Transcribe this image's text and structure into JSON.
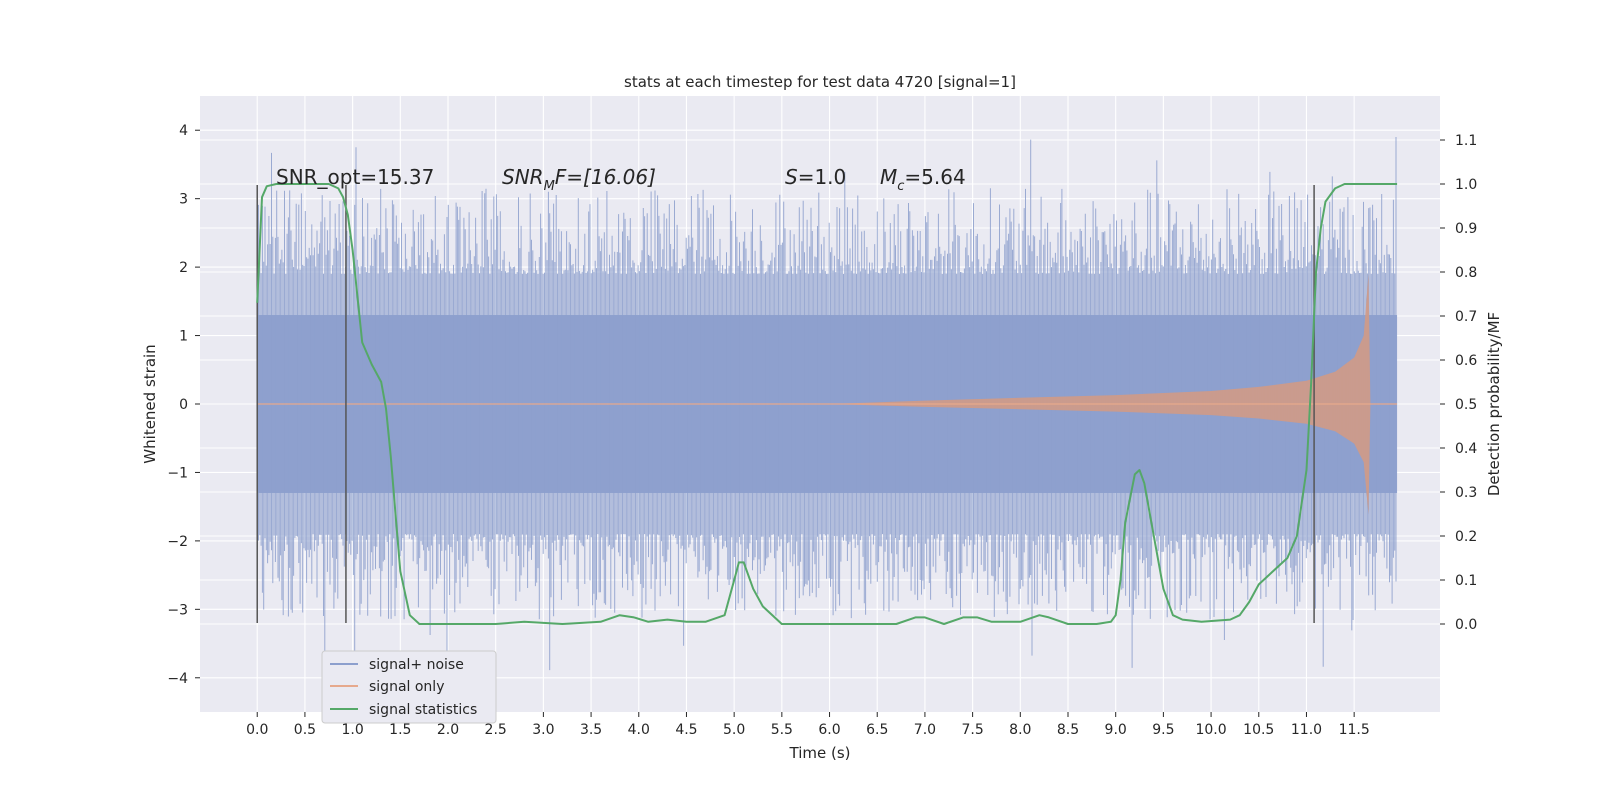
{
  "chart_data": {
    "type": "line",
    "title": "stats at each timestep for test data 4720 [signal=1]",
    "xlabel": "Time (s)",
    "ylabel_left": "Whitened strain",
    "ylabel_right": "Detection probability/MF",
    "xlim": [
      -0.6,
      12.4
    ],
    "ylim_left": [
      -4.5,
      4.5
    ],
    "ylim_right": [
      -0.2,
      1.2
    ],
    "x_ticks": [
      "0.0",
      "0.5",
      "1.0",
      "1.5",
      "2.0",
      "2.5",
      "3.0",
      "3.5",
      "4.0",
      "4.5",
      "5.0",
      "5.5",
      "6.0",
      "6.5",
      "7.0",
      "7.5",
      "8.0",
      "8.5",
      "9.0",
      "9.5",
      "10.0",
      "10.5",
      "11.0",
      "11.5"
    ],
    "y_left_ticks": [
      "4",
      "3",
      "2",
      "1",
      "0",
      "−1",
      "−2",
      "−3",
      "−4"
    ],
    "y_right_ticks": [
      "1.1",
      "1.0",
      "0.9",
      "0.8",
      "0.7",
      "0.6",
      "0.5",
      "0.4",
      "0.3",
      "0.2",
      "0.1",
      "0.0"
    ],
    "grid": true,
    "legend_position": "bottom-left",
    "annotations": {
      "snr_opt": "SNR_opt=15.37",
      "snr_mf_name": "SNR",
      "snr_mf_sub": "M",
      "snr_mf_rest": "F=[16.06]",
      "s_name": "S",
      "s_rest": "=1.0",
      "mc_name": "M",
      "mc_sub": "c",
      "mc_rest": "=5.64"
    },
    "vertical_markers_x": [
      0.0,
      0.93,
      11.08
    ],
    "series": [
      {
        "name": "signal+ noise",
        "axis": "left",
        "color": "#8c9fcd",
        "x_range": [
          0.0,
          11.95
        ],
        "band_upper": 1.3,
        "band_lower": -1.3,
        "spike_max": 4.1,
        "spike_min": -4.0
      },
      {
        "name": "signal only",
        "axis": "left",
        "color": "#dd8452",
        "envelope": [
          [
            6.0,
            0.0
          ],
          [
            7.0,
            0.05
          ],
          [
            8.0,
            0.09
          ],
          [
            9.0,
            0.13
          ],
          [
            10.0,
            0.19
          ],
          [
            10.5,
            0.25
          ],
          [
            11.0,
            0.34
          ],
          [
            11.3,
            0.47
          ],
          [
            11.5,
            0.68
          ],
          [
            11.6,
            1.0
          ],
          [
            11.65,
            1.9
          ],
          [
            11.67,
            0.0
          ]
        ]
      },
      {
        "name": "signal statistics",
        "axis": "right",
        "color": "#55a868",
        "x": [
          0.0,
          0.05,
          0.1,
          0.2,
          0.4,
          0.6,
          0.75,
          0.85,
          0.9,
          0.95,
          1.0,
          1.1,
          1.2,
          1.3,
          1.35,
          1.4,
          1.45,
          1.5,
          1.6,
          1.7,
          1.8,
          2.0,
          2.5,
          2.8,
          3.2,
          3.6,
          3.8,
          3.95,
          4.1,
          4.3,
          4.5,
          4.7,
          4.9,
          5.0,
          5.05,
          5.1,
          5.2,
          5.3,
          5.5,
          5.8,
          6.2,
          6.7,
          6.9,
          7.0,
          7.2,
          7.4,
          7.55,
          7.7,
          8.0,
          8.2,
          8.3,
          8.5,
          8.8,
          8.95,
          9.0,
          9.05,
          9.1,
          9.2,
          9.25,
          9.3,
          9.4,
          9.5,
          9.6,
          9.7,
          9.9,
          10.2,
          10.3,
          10.4,
          10.5,
          10.6,
          10.8,
          10.9,
          11.0,
          11.05,
          11.1,
          11.15,
          11.2,
          11.3,
          11.4,
          11.6,
          11.95
        ],
        "y": [
          0.73,
          0.97,
          0.995,
          1.0,
          1.0,
          1.0,
          1.0,
          0.99,
          0.97,
          0.93,
          0.85,
          0.64,
          0.59,
          0.55,
          0.49,
          0.38,
          0.25,
          0.12,
          0.02,
          0.0,
          0.0,
          0.0,
          0.0,
          0.005,
          0.0,
          0.005,
          0.02,
          0.015,
          0.005,
          0.01,
          0.005,
          0.005,
          0.02,
          0.1,
          0.14,
          0.14,
          0.08,
          0.04,
          0.0,
          0.0,
          0.0,
          0.0,
          0.015,
          0.015,
          0.0,
          0.015,
          0.015,
          0.005,
          0.005,
          0.02,
          0.015,
          0.0,
          0.0,
          0.005,
          0.02,
          0.1,
          0.23,
          0.34,
          0.35,
          0.32,
          0.2,
          0.08,
          0.02,
          0.01,
          0.005,
          0.01,
          0.02,
          0.05,
          0.09,
          0.11,
          0.15,
          0.2,
          0.35,
          0.55,
          0.8,
          0.9,
          0.96,
          0.99,
          1.0,
          1.0,
          1.0
        ]
      }
    ]
  }
}
